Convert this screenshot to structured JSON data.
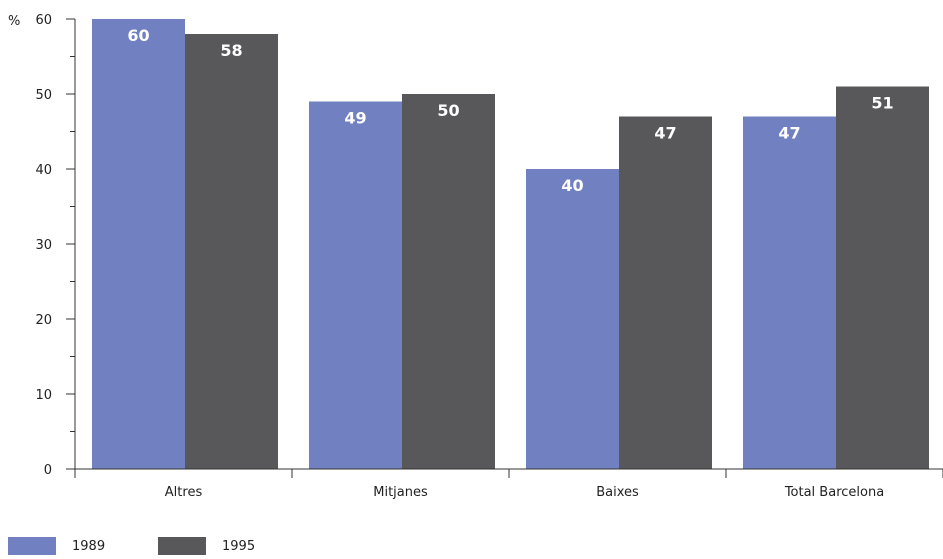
{
  "chart_data": {
    "type": "bar",
    "unit_label": "%",
    "categories": [
      "Altres",
      "Mitjanes",
      "Baixes",
      "Total Barcelona"
    ],
    "series": [
      {
        "name": "1989",
        "values": [
          60,
          49,
          40,
          47
        ],
        "color": "#7080C0"
      },
      {
        "name": "1995",
        "values": [
          58,
          50,
          47,
          51
        ],
        "color": "#58585A"
      }
    ],
    "ylim": [
      0,
      60
    ],
    "yticks": [
      0,
      10,
      20,
      30,
      40,
      50,
      60
    ],
    "grid": false,
    "legend_position": "bottom-left"
  }
}
